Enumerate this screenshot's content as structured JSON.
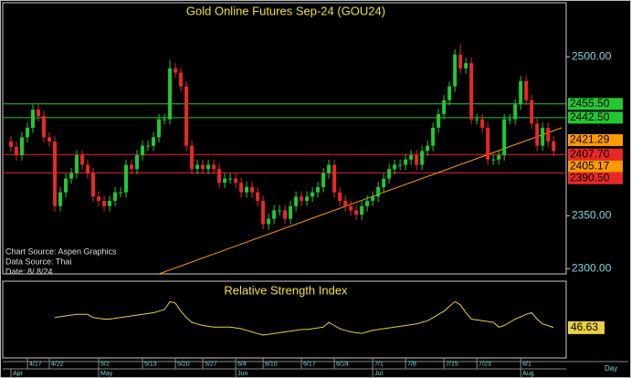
{
  "chart_data": [
    {
      "type": "candlestick",
      "title": "Gold Online Futures Sep-24 (GOU24)",
      "open": [
        2420,
        2415,
        2407,
        2424,
        2433,
        2450,
        2444,
        2424,
        2420,
        2359,
        2372,
        2385,
        2390,
        2407,
        2398,
        2390,
        2368,
        2364,
        2359,
        2364,
        2372,
        2372,
        2398,
        2394,
        2407,
        2416,
        2416,
        2424,
        2441,
        2441,
        2489,
        2485,
        2472,
        2416,
        2394,
        2398,
        2394,
        2398,
        2394,
        2381,
        2385,
        2385,
        2381,
        2372,
        2377,
        2372,
        2364,
        2342,
        2347,
        2355,
        2355,
        2347,
        2359,
        2368,
        2364,
        2368,
        2372,
        2377,
        2390,
        2398,
        2372,
        2364,
        2359,
        2355,
        2351,
        2359,
        2364,
        2368,
        2377,
        2385,
        2394,
        2398,
        2398,
        2403,
        2407,
        2398,
        2411,
        2416,
        2433,
        2446,
        2459,
        2472,
        2502,
        2489,
        2494,
        2441,
        2441,
        2433,
        2403,
        2403,
        2407,
        2441,
        2441,
        2455,
        2477,
        2459,
        2437,
        2416,
        2433,
        2420
      ],
      "high": [
        2425,
        2420,
        2429,
        2438,
        2455,
        2455,
        2449,
        2429,
        2425,
        2377,
        2390,
        2395,
        2412,
        2412,
        2403,
        2395,
        2373,
        2369,
        2369,
        2377,
        2377,
        2403,
        2403,
        2412,
        2421,
        2421,
        2429,
        2446,
        2446,
        2497,
        2494,
        2490,
        2477,
        2421,
        2403,
        2403,
        2403,
        2403,
        2399,
        2390,
        2390,
        2390,
        2386,
        2382,
        2382,
        2377,
        2369,
        2352,
        2360,
        2360,
        2360,
        2364,
        2373,
        2373,
        2373,
        2377,
        2382,
        2395,
        2403,
        2403,
        2377,
        2369,
        2364,
        2360,
        2364,
        2369,
        2373,
        2382,
        2390,
        2399,
        2403,
        2403,
        2408,
        2412,
        2412,
        2416,
        2421,
        2438,
        2451,
        2464,
        2477,
        2507,
        2512,
        2499,
        2499,
        2446,
        2446,
        2438,
        2408,
        2412,
        2446,
        2446,
        2460,
        2482,
        2482,
        2464,
        2442,
        2438,
        2438,
        2425
      ],
      "low": [
        2410,
        2402,
        2402,
        2419,
        2428,
        2439,
        2419,
        2415,
        2354,
        2354,
        2367,
        2380,
        2385,
        2393,
        2385,
        2363,
        2359,
        2354,
        2354,
        2359,
        2367,
        2367,
        2389,
        2389,
        2402,
        2411,
        2411,
        2419,
        2436,
        2436,
        2480,
        2467,
        2411,
        2389,
        2389,
        2389,
        2389,
        2389,
        2376,
        2376,
        2380,
        2376,
        2367,
        2367,
        2367,
        2359,
        2337,
        2337,
        2342,
        2350,
        2342,
        2342,
        2354,
        2359,
        2359,
        2363,
        2367,
        2372,
        2385,
        2367,
        2359,
        2354,
        2350,
        2346,
        2346,
        2354,
        2359,
        2363,
        2372,
        2380,
        2389,
        2393,
        2393,
        2398,
        2393,
        2393,
        2406,
        2411,
        2428,
        2441,
        2454,
        2467,
        2484,
        2484,
        2436,
        2436,
        2428,
        2398,
        2398,
        2398,
        2402,
        2436,
        2436,
        2450,
        2454,
        2432,
        2411,
        2411,
        2415,
        2406
      ],
      "close": [
        2415,
        2407,
        2424,
        2433,
        2450,
        2444,
        2424,
        2420,
        2359,
        2372,
        2385,
        2390,
        2407,
        2398,
        2390,
        2368,
        2364,
        2359,
        2364,
        2372,
        2372,
        2398,
        2394,
        2407,
        2416,
        2416,
        2424,
        2441,
        2441,
        2489,
        2485,
        2472,
        2416,
        2394,
        2398,
        2394,
        2398,
        2394,
        2381,
        2385,
        2385,
        2381,
        2372,
        2377,
        2372,
        2364,
        2342,
        2347,
        2355,
        2355,
        2347,
        2359,
        2368,
        2364,
        2368,
        2372,
        2377,
        2390,
        2398,
        2372,
        2364,
        2359,
        2355,
        2351,
        2359,
        2364,
        2368,
        2377,
        2385,
        2394,
        2398,
        2398,
        2403,
        2407,
        2398,
        2411,
        2416,
        2433,
        2446,
        2459,
        2472,
        2502,
        2489,
        2494,
        2441,
        2441,
        2433,
        2403,
        2403,
        2407,
        2441,
        2441,
        2455,
        2477,
        2459,
        2437,
        2416,
        2433,
        2420,
        2411
      ],
      "up_color": "#22c832",
      "down_color": "#e82828",
      "ylim": [
        2295,
        2551
      ],
      "yticks": [
        {
          "value": 2300,
          "label": "2300.00"
        },
        {
          "value": 2350,
          "label": "2350.00"
        },
        {
          "value": 2500,
          "label": "2500.00"
        }
      ],
      "xlim": [
        -1.5,
        101.3
      ],
      "xticks": [
        {
          "value": 3,
          "label": "4/17"
        },
        {
          "value": 7,
          "label": "4/22"
        },
        {
          "value": 16,
          "label": "5/2"
        },
        {
          "value": 24,
          "label": "5/13"
        },
        {
          "value": 30,
          "label": "5/20"
        },
        {
          "value": 35,
          "label": "5/27"
        },
        {
          "value": 41,
          "label": "6/4"
        },
        {
          "value": 46,
          "label": "6/10"
        },
        {
          "value": 53,
          "label": "6/17"
        },
        {
          "value": 59,
          "label": "6/24"
        },
        {
          "value": 66,
          "label": "7/1"
        },
        {
          "value": 72,
          "label": "7/8"
        },
        {
          "value": 79,
          "label": "7/15"
        },
        {
          "value": 85,
          "label": "7/23"
        },
        {
          "value": 93,
          "label": "8/1"
        }
      ],
      "months": [
        {
          "value": 0,
          "label": "Apr"
        },
        {
          "value": 16,
          "label": "May"
        },
        {
          "value": 41,
          "label": "Jun"
        },
        {
          "value": 66,
          "label": "Jul"
        },
        {
          "value": 93,
          "label": "Aug"
        }
      ],
      "x_unit_label": "Day",
      "levels": [
        {
          "value": 2455.5,
          "label": "2455.50",
          "color": "#22c832",
          "line": true
        },
        {
          "value": 2442.5,
          "label": "2442.50",
          "color": "#22c832",
          "line": true
        },
        {
          "value": 2421.29,
          "label": "2421.29",
          "color": "#ff9a00",
          "line": false
        },
        {
          "value": 2407.7,
          "label": "2407.70",
          "color": "#e82828",
          "line": true
        },
        {
          "value": 2405.17,
          "label": "2405.17",
          "color": "#ff9a00",
          "line": false
        },
        {
          "value": 2390.5,
          "label": "2390.50",
          "color": "#e82828",
          "line": true
        }
      ],
      "trendline": {
        "x": [
          27,
          100.5
        ],
        "y": [
          2295,
          2433
        ],
        "color": "#ff9a00"
      },
      "notes": [
        "Chart Source: Aspen Graphics",
        "Data Source: Thai",
        "Date: 8/ 8/24"
      ]
    },
    {
      "type": "line",
      "title": "Relative Strength Index",
      "values": [
        null,
        null,
        null,
        null,
        null,
        null,
        null,
        null,
        53,
        53.5,
        54,
        54.5,
        55,
        55,
        55,
        53,
        52.5,
        52,
        52,
        52.5,
        53,
        53.5,
        54,
        54.5,
        55,
        55.5,
        56,
        57,
        58,
        63,
        62,
        57,
        53,
        50,
        49,
        48,
        47.5,
        47,
        47,
        47,
        47,
        46.5,
        46,
        45,
        44,
        43,
        42,
        42.5,
        43,
        43.5,
        44,
        44.5,
        45,
        45.5,
        45.5,
        46,
        46.5,
        47,
        50,
        48,
        46,
        45,
        44,
        43.5,
        43,
        44,
        45,
        45.5,
        46,
        46.5,
        47,
        47.5,
        48,
        48.5,
        49,
        50,
        51,
        53,
        55,
        57,
        60,
        63,
        61,
        56,
        52,
        51.5,
        51,
        50.5,
        50,
        47,
        48,
        50,
        52,
        53.5,
        55,
        56,
        52,
        49,
        48,
        46.63
      ],
      "color": "#e8d040",
      "ylim": [
        30,
        70
      ]
    }
  ]
}
